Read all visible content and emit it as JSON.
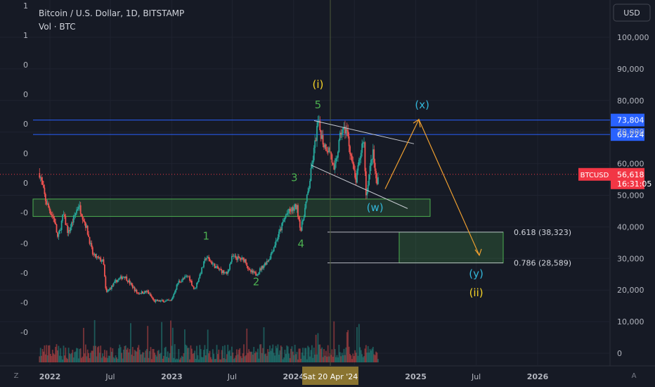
{
  "header": {
    "title": "Bitcoin / U.S. Dollar, 1D, BITSTAMP",
    "volume_label": "Vol · BTC"
  },
  "currency_button": "USD",
  "left_scale_labels": [
    "1",
    "1",
    "0",
    "0",
    "0",
    "0",
    "0",
    "-0",
    "-0",
    "-0",
    "-0",
    "-0"
  ],
  "corner_left": "Z",
  "corner_right": "A",
  "chart_data": {
    "type": "candlestick",
    "title": "Bitcoin / U.S. Dollar, 1D, BITSTAMP",
    "x_ticks": [
      "2022",
      "Jul",
      "2023",
      "Jul",
      "2024",
      "Jul",
      "2025",
      "Jul",
      "2026"
    ],
    "y_ticks": [
      "100,000",
      "90,000",
      "80,000",
      "70,000",
      "60,000",
      "50,000",
      "40,000",
      "30,000",
      "20,000",
      "10,000",
      "0"
    ],
    "y_range": [
      0,
      104000
    ],
    "price_path": [
      [
        "2021-12-01",
        57000
      ],
      [
        "2021-12-20",
        48000
      ],
      [
        "2022-01-15",
        42000
      ],
      [
        "2022-01-25",
        36000
      ],
      [
        "2022-02-10",
        44000
      ],
      [
        "2022-02-25",
        38000
      ],
      [
        "2022-03-28",
        47000
      ],
      [
        "2022-04-20",
        40000
      ],
      [
        "2022-05-10",
        31000
      ],
      [
        "2022-06-10",
        29000
      ],
      [
        "2022-06-18",
        19000
      ],
      [
        "2022-07-20",
        23000
      ],
      [
        "2022-08-12",
        24500
      ],
      [
        "2022-09-20",
        19000
      ],
      [
        "2022-10-20",
        19500
      ],
      [
        "2022-11-09",
        16500
      ],
      [
        "2022-12-30",
        16500
      ],
      [
        "2023-01-20",
        22500
      ],
      [
        "2023-02-20",
        24500
      ],
      [
        "2023-03-10",
        20000
      ],
      [
        "2023-04-14",
        30500
      ],
      [
        "2023-05-15",
        27000
      ],
      [
        "2023-06-15",
        25000
      ],
      [
        "2023-07-01",
        30500
      ],
      [
        "2023-08-10",
        29500
      ],
      [
        "2023-08-20",
        26000
      ],
      [
        "2023-09-11",
        25000
      ],
      [
        "2023-10-20",
        30000
      ],
      [
        "2023-11-15",
        37000
      ],
      [
        "2023-12-10",
        44000
      ],
      [
        "2024-01-10",
        46500
      ],
      [
        "2024-01-23",
        39000
      ],
      [
        "2024-02-15",
        52000
      ],
      [
        "2024-03-14",
        73000
      ],
      [
        "2024-04-01",
        66000
      ],
      [
        "2024-04-20",
        64000
      ],
      [
        "2024-05-01",
        57000
      ],
      [
        "2024-05-22",
        70000
      ],
      [
        "2024-06-07",
        71000
      ],
      [
        "2024-07-05",
        54000
      ],
      [
        "2024-07-29",
        69000
      ],
      [
        "2024-08-05",
        50000
      ],
      [
        "2024-08-25",
        64000
      ],
      [
        "2024-09-06",
        53000
      ],
      [
        "2024-09-12",
        56618
      ]
    ],
    "horizontal_levels": [
      {
        "price": 73804,
        "label": "73,804",
        "color": "#2962ff"
      },
      {
        "price": 69224,
        "label": "69,224",
        "color": "#2962ff"
      }
    ],
    "current_price": {
      "symbol": "BTCUSD",
      "price": 56618,
      "label": "56,618",
      "countdown": "16:31:05",
      "color": "#f23645"
    },
    "fib_levels": [
      {
        "ratio": "0.618",
        "label": "0.618 (38,323)",
        "price": 38323
      },
      {
        "ratio": "0.786",
        "label": "0.786 (28,589)",
        "price": 28589
      }
    ],
    "wave_labels": [
      {
        "text": "1",
        "date": "2023-04-14",
        "price": 36000,
        "color": "#4caf50"
      },
      {
        "text": "2",
        "date": "2023-09-11",
        "price": 21500,
        "color": "#4caf50"
      },
      {
        "text": "3",
        "date": "2024-01-03",
        "price": 54500,
        "color": "#4caf50"
      },
      {
        "text": "4",
        "date": "2024-01-23",
        "price": 33500,
        "color": "#4caf50"
      },
      {
        "text": "5",
        "date": "2024-03-14",
        "price": 77500,
        "color": "#4caf50"
      },
      {
        "text": "(i)",
        "date": "2024-03-14",
        "price": 84000,
        "color": "#f5d327"
      },
      {
        "text": "(w)",
        "date": "2024-09-01",
        "price": 45000,
        "color": "#33b6d9"
      },
      {
        "text": "(x)",
        "date": "2025-01-20",
        "price": 77500,
        "color": "#33b6d9"
      },
      {
        "text": "(y)",
        "date": "2025-07-01",
        "price": 24000,
        "color": "#33b6d9"
      },
      {
        "text": "(ii)",
        "date": "2025-07-01",
        "price": 18000,
        "color": "#f5d327"
      }
    ],
    "crosshair_date": "Sat 20 Apr '24"
  }
}
